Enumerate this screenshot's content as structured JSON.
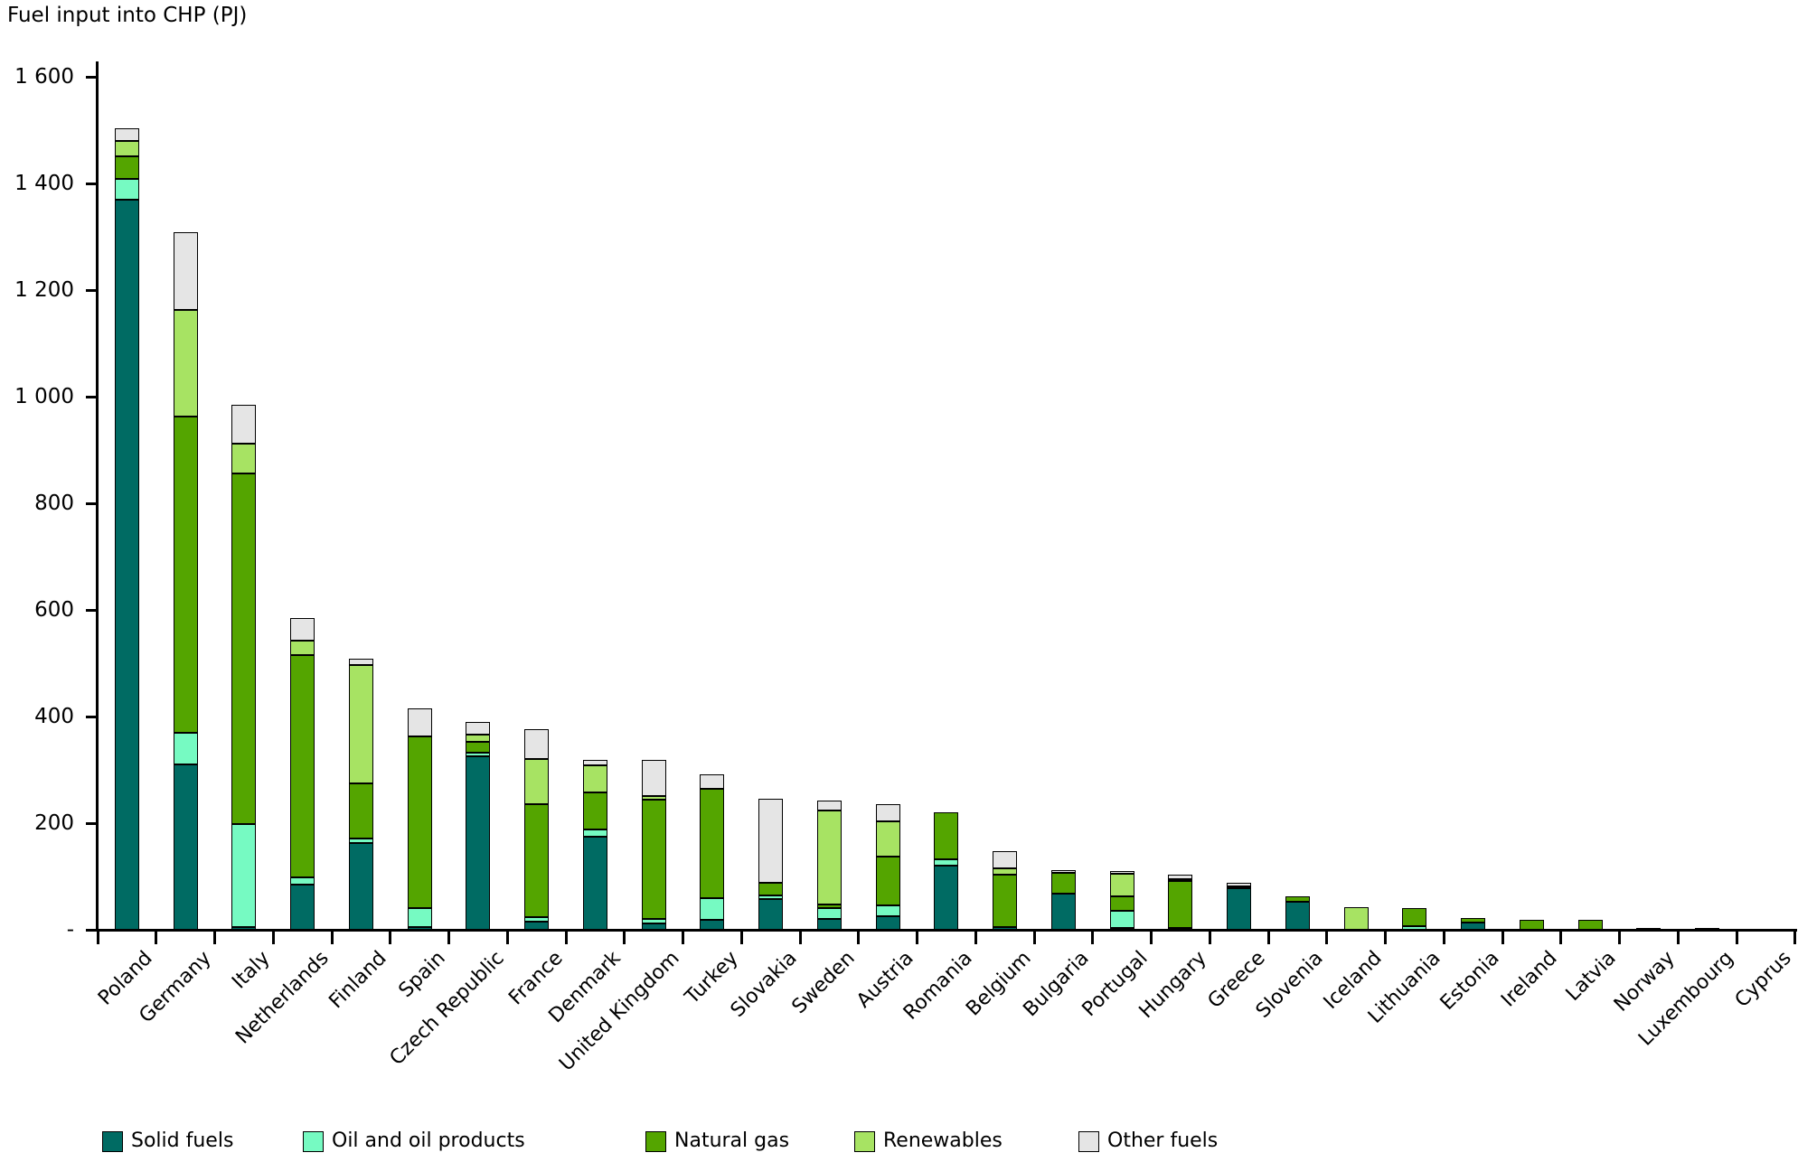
{
  "chart_data": {
    "type": "bar",
    "stacked": true,
    "title": "Fuel input into CHP (PJ)",
    "categories": [
      "Poland",
      "Germany",
      "Italy",
      "Netherlands",
      "Finland",
      "Spain",
      "Czech Republic",
      "France",
      "Denmark",
      "United Kingdom",
      "Turkey",
      "Slovakia",
      "Sweden",
      "Austria",
      "Romania",
      "Belgium",
      "Bulgaria",
      "Portugal",
      "Hungary",
      "Greece",
      "Slovenia",
      "Iceland",
      "Lithuania",
      "Estonia",
      "Ireland",
      "Latvia",
      "Norway",
      "Luxembourg",
      "Cyprus"
    ],
    "series": [
      {
        "name": "Solid fuels",
        "color": "#006B63",
        "values": [
          1370,
          310,
          5,
          84,
          163,
          5,
          325,
          16,
          175,
          12,
          18,
          58,
          21,
          25,
          120,
          5,
          67,
          1,
          4,
          78,
          52,
          0,
          0,
          14,
          0,
          0,
          0,
          0,
          0
        ]
      },
      {
        "name": "Oil and oil products",
        "color": "#76FAC2",
        "values": [
          38,
          60,
          193,
          15,
          9,
          36,
          7,
          8,
          13,
          8,
          42,
          6,
          19,
          21,
          12,
          0,
          0,
          32,
          0,
          0,
          0,
          0,
          6,
          0,
          0,
          0,
          0,
          0,
          0
        ]
      },
      {
        "name": "Natural gas",
        "color": "#54A500",
        "values": [
          43,
          593,
          658,
          416,
          102,
          321,
          20,
          212,
          69,
          224,
          204,
          24,
          8,
          92,
          89,
          98,
          40,
          28,
          88,
          2,
          10,
          0,
          34,
          8,
          19,
          19,
          4,
          4,
          0
        ]
      },
      {
        "name": "Renewables",
        "color": "#A7E363",
        "values": [
          28,
          200,
          56,
          28,
          223,
          0,
          14,
          85,
          51,
          7,
          0,
          0,
          175,
          65,
          0,
          13,
          0,
          42,
          3,
          0,
          0,
          42,
          0,
          0,
          0,
          0,
          0,
          0,
          0
        ]
      },
      {
        "name": "Other fuels",
        "color": "#E5E5E5",
        "values": [
          25,
          145,
          73,
          42,
          12,
          53,
          24,
          56,
          11,
          67,
          27,
          158,
          19,
          33,
          0,
          31,
          5,
          4,
          8,
          7,
          0,
          0,
          0,
          0,
          0,
          0,
          0,
          0,
          0
        ]
      }
    ],
    "ylim": [
      0,
      1600
    ],
    "ytick_values": [
      0,
      200,
      400,
      600,
      800,
      1000,
      1200,
      1400,
      1600
    ],
    "ytick_labels": [
      "-",
      "200",
      "400",
      "600",
      "800",
      "1 000",
      "1 200",
      "1 400",
      "1 600"
    ],
    "grid": false,
    "legend_position": "bottom",
    "bar_border_color": "#000000"
  }
}
